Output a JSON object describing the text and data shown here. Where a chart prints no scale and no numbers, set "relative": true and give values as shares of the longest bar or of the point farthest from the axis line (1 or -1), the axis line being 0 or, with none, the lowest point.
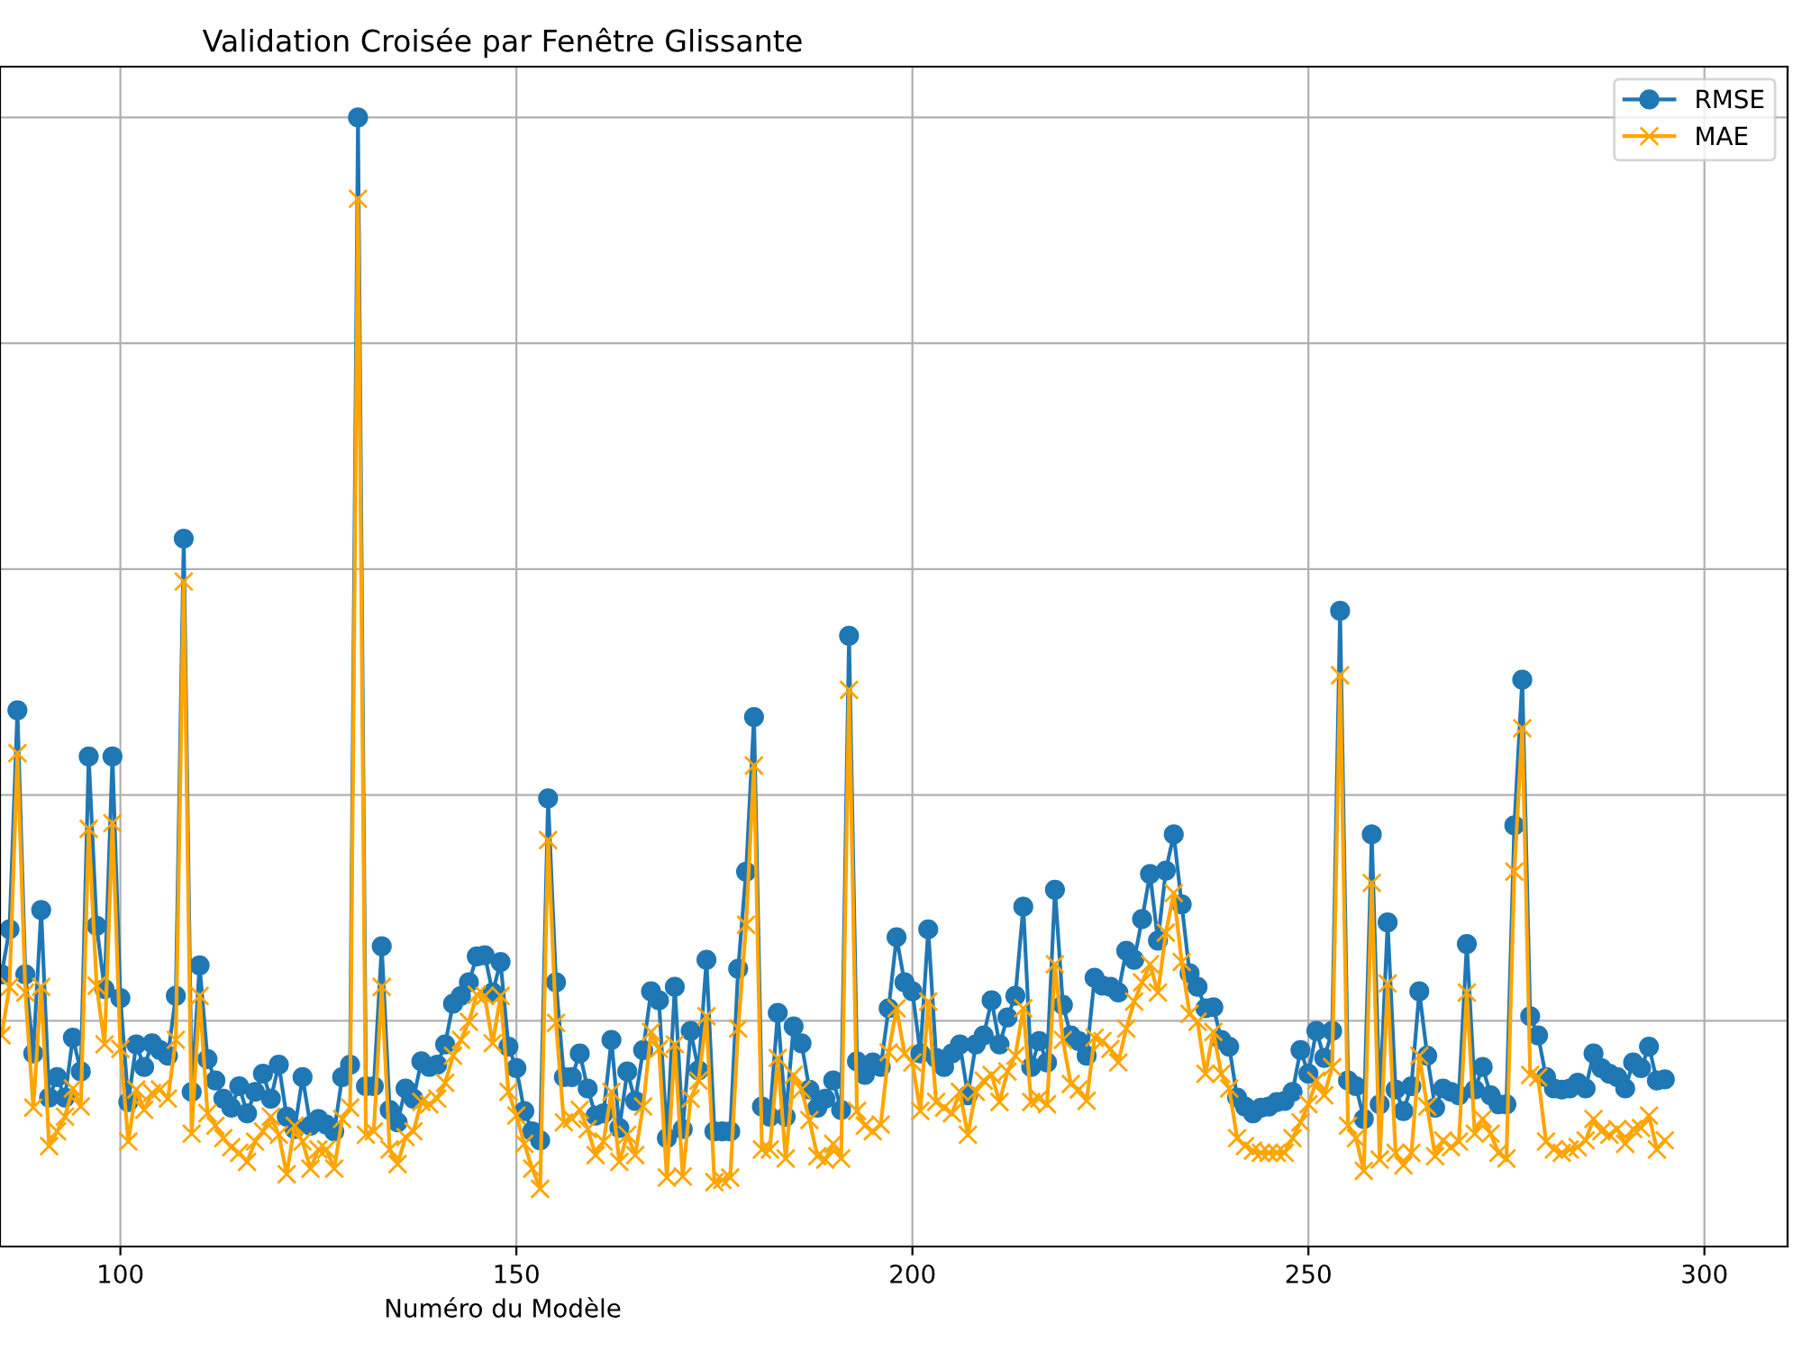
{
  "chart_data": {
    "type": "line",
    "title": "Validation Croisée par Fenêtre Glissante",
    "xlabel": "Numéro du Modèle",
    "relative": true,
    "xlim": [
      84.8,
      310.5
    ],
    "xticks": [
      100,
      150,
      200,
      250,
      300
    ],
    "grid": true,
    "legend": "top right",
    "x": [
      85,
      86,
      87,
      88,
      89,
      90,
      91,
      92,
      93,
      94,
      95,
      96,
      97,
      98,
      99,
      100,
      101,
      102,
      103,
      104,
      105,
      106,
      107,
      108,
      109,
      110,
      111,
      112,
      113,
      114,
      115,
      116,
      117,
      118,
      119,
      120,
      121,
      122,
      123,
      124,
      125,
      126,
      127,
      128,
      129,
      130,
      131,
      132,
      133,
      134,
      135,
      136,
      137,
      138,
      139,
      140,
      141,
      142,
      143,
      144,
      145,
      146,
      147,
      148,
      149,
      150,
      151,
      152,
      153,
      154,
      155,
      156,
      157,
      158,
      159,
      160,
      161,
      162,
      163,
      164,
      165,
      166,
      167,
      168,
      169,
      170,
      171,
      172,
      173,
      174,
      175,
      176,
      177,
      178,
      179,
      180,
      181,
      182,
      183,
      184,
      185,
      186,
      187,
      188,
      189,
      190,
      191,
      192,
      193,
      194,
      195,
      196,
      197,
      198,
      199,
      200,
      201,
      202,
      203,
      204,
      205,
      206,
      207,
      208,
      209,
      210,
      211,
      212,
      213,
      214,
      215,
      216,
      217,
      218,
      219,
      220,
      221,
      222,
      223,
      224,
      225,
      226,
      227,
      228,
      229,
      230,
      231,
      232,
      233,
      234,
      235,
      236,
      237,
      238,
      239,
      240,
      241,
      242,
      243,
      244,
      245,
      246,
      247,
      248,
      249,
      250,
      251,
      252,
      253,
      254,
      255,
      256,
      257,
      258,
      259,
      260,
      261,
      262,
      263,
      264,
      265,
      266,
      267,
      268,
      269,
      270,
      271,
      272,
      273,
      274,
      275,
      276,
      277,
      278,
      279,
      280,
      281,
      282,
      283,
      284,
      285,
      286,
      287,
      288,
      289,
      290,
      291,
      292,
      293,
      294,
      295
    ],
    "series": [
      {
        "name": "RMSE",
        "color": "#1f77b4",
        "marker": "circle",
        "values": [
          0.241,
          0.281,
          0.475,
          0.241,
          0.171,
          0.298,
          0.132,
          0.15,
          0.132,
          0.185,
          0.155,
          0.434,
          0.284,
          0.228,
          0.434,
          0.22,
          0.128,
          0.179,
          0.159,
          0.18,
          0.174,
          0.169,
          0.222,
          0.627,
          0.137,
          0.249,
          0.166,
          0.147,
          0.131,
          0.123,
          0.142,
          0.118,
          0.137,
          0.153,
          0.131,
          0.161,
          0.115,
          0.104,
          0.15,
          0.107,
          0.113,
          0.108,
          0.102,
          0.15,
          0.161,
          1,
          0.142,
          0.142,
          0.266,
          0.121,
          0.11,
          0.14,
          0.131,
          0.164,
          0.159,
          0.161,
          0.179,
          0.215,
          0.222,
          0.234,
          0.257,
          0.258,
          0.225,
          0.252,
          0.177,
          0.158,
          0.12,
          0.102,
          0.094,
          0.397,
          0.234,
          0.15,
          0.15,
          0.171,
          0.14,
          0.116,
          0.118,
          0.183,
          0.105,
          0.155,
          0.129,
          0.174,
          0.226,
          0.218,
          0.096,
          0.23,
          0.104,
          0.191,
          0.156,
          0.254,
          0.102,
          0.102,
          0.102,
          0.246,
          0.332,
          0.469,
          0.124,
          0.115,
          0.207,
          0.115,
          0.195,
          0.18,
          0.139,
          0.123,
          0.131,
          0.147,
          0.121,
          0.541,
          0.164,
          0.152,
          0.163,
          0.159,
          0.211,
          0.274,
          0.234,
          0.226,
          0.171,
          0.281,
          0.167,
          0.159,
          0.171,
          0.179,
          0.134,
          0.179,
          0.187,
          0.218,
          0.179,
          0.203,
          0.222,
          0.301,
          0.159,
          0.182,
          0.163,
          0.316,
          0.214,
          0.187,
          0.182,
          0.169,
          0.238,
          0.231,
          0.23,
          0.225,
          0.262,
          0.254,
          0.29,
          0.33,
          0.271,
          0.333,
          0.365,
          0.303,
          0.242,
          0.23,
          0.211,
          0.212,
          0.183,
          0.177,
          0.132,
          0.124,
          0.118,
          0.123,
          0.124,
          0.128,
          0.129,
          0.137,
          0.174,
          0.153,
          0.191,
          0.167,
          0.191,
          0.563,
          0.147,
          0.142,
          0.113,
          0.365,
          0.126,
          0.287,
          0.139,
          0.12,
          0.142,
          0.226,
          0.169,
          0.123,
          0.14,
          0.137,
          0.134,
          0.268,
          0.139,
          0.159,
          0.134,
          0.126,
          0.126,
          0.373,
          0.502,
          0.204,
          0.187,
          0.15,
          0.14,
          0.139,
          0.14,
          0.145,
          0.14,
          0.171,
          0.158,
          0.153,
          0.15,
          0.14,
          0.163,
          0.158,
          0.177,
          0.147,
          0.148
        ]
      },
      {
        "name": "MAE",
        "color": "#ffa500",
        "marker": "cross",
        "values": [
          0.187,
          0.23,
          0.437,
          0.225,
          0.123,
          0.23,
          0.089,
          0.102,
          0.115,
          0.14,
          0.124,
          0.37,
          0.231,
          0.179,
          0.375,
          0.175,
          0.093,
          0.139,
          0.121,
          0.136,
          0.139,
          0.131,
          0.183,
          0.589,
          0.1,
          0.222,
          0.118,
          0.107,
          0.096,
          0.088,
          0.083,
          0.075,
          0.093,
          0.102,
          0.115,
          0.099,
          0.064,
          0.107,
          0.093,
          0.069,
          0.086,
          0.086,
          0.069,
          0.113,
          0.123,
          0.928,
          0.099,
          0.102,
          0.23,
          0.086,
          0.073,
          0.097,
          0.102,
          0.128,
          0.126,
          0.131,
          0.145,
          0.169,
          0.183,
          0.199,
          0.223,
          0.222,
          0.18,
          0.222,
          0.137,
          0.116,
          0.091,
          0.069,
          0.051,
          0.36,
          0.198,
          0.11,
          0.113,
          0.121,
          0.104,
          0.081,
          0.093,
          0.137,
          0.075,
          0.099,
          0.081,
          0.124,
          0.19,
          0.175,
          0.061,
          0.179,
          0.062,
          0.131,
          0.147,
          0.204,
          0.057,
          0.059,
          0.061,
          0.193,
          0.285,
          0.426,
          0.086,
          0.086,
          0.167,
          0.078,
          0.152,
          0.139,
          0.112,
          0.08,
          0.077,
          0.091,
          0.078,
          0.493,
          0.12,
          0.107,
          0.102,
          0.108,
          0.172,
          0.211,
          0.171,
          0.163,
          0.12,
          0.217,
          0.128,
          0.123,
          0.118,
          0.137,
          0.099,
          0.137,
          0.147,
          0.152,
          0.128,
          0.155,
          0.169,
          0.211,
          0.128,
          0.131,
          0.126,
          0.25,
          0.183,
          0.144,
          0.139,
          0.129,
          0.185,
          0.182,
          0.175,
          0.163,
          0.193,
          0.217,
          0.234,
          0.25,
          0.225,
          0.278,
          0.313,
          0.252,
          0.206,
          0.199,
          0.153,
          0.19,
          0.153,
          0.14,
          0.096,
          0.089,
          0.085,
          0.083,
          0.083,
          0.083,
          0.083,
          0.096,
          0.11,
          0.126,
          0.147,
          0.134,
          0.159,
          0.506,
          0.107,
          0.096,
          0.067,
          0.322,
          0.077,
          0.233,
          0.083,
          0.072,
          0.083,
          0.169,
          0.124,
          0.08,
          0.094,
          0.088,
          0.093,
          0.225,
          0.1,
          0.113,
          0.1,
          0.083,
          0.078,
          0.332,
          0.459,
          0.152,
          0.15,
          0.093,
          0.086,
          0.083,
          0.086,
          0.088,
          0.094,
          0.113,
          0.102,
          0.099,
          0.104,
          0.091,
          0.104,
          0.105,
          0.116,
          0.086,
          0.094
        ]
      }
    ]
  }
}
